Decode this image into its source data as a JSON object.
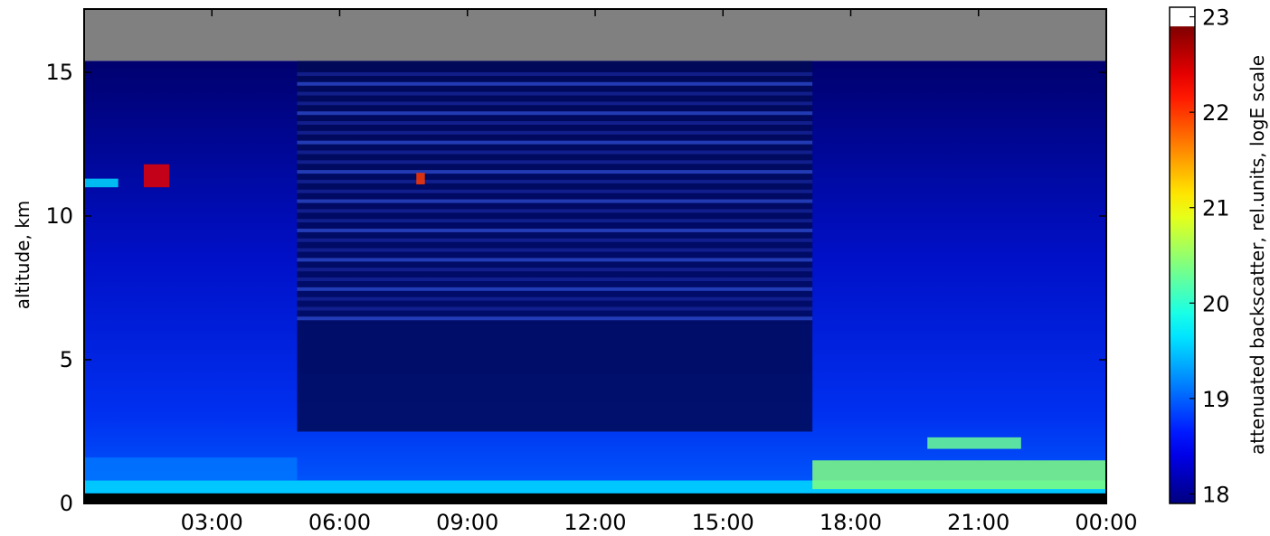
{
  "chart_data": {
    "type": "heatmap",
    "title": "",
    "xlabel": "",
    "ylabel": "altitude, km",
    "x_ticks": [
      "03:00",
      "06:00",
      "09:00",
      "12:00",
      "15:00",
      "18:00",
      "21:00",
      "00:00"
    ],
    "x_tick_hours": [
      3,
      6,
      9,
      12,
      15,
      18,
      21,
      24
    ],
    "xlim_hours": [
      0,
      24
    ],
    "y_ticks": [
      0,
      5,
      10,
      15
    ],
    "ylim": [
      0,
      17.2
    ],
    "colorbar": {
      "label": "attenuated backscatter, rel.units, logE scale",
      "ticks": [
        18,
        19,
        20,
        21,
        22,
        23
      ],
      "range": [
        17.9,
        23.1
      ],
      "colormap": "jet"
    },
    "colors": {
      "no_data": "#808080",
      "above_range": "#ffffff",
      "below_range": "#000000"
    },
    "regions": {
      "instrument_top_km": 15.4,
      "ground_blind_km": 0.35,
      "noisy_period_hours": [
        5.0,
        17.1
      ]
    },
    "cloud_layers": [
      {
        "t0": 0.0,
        "t1": 24.0,
        "z0": 0.35,
        "z1": 0.8,
        "value": 19.6
      },
      {
        "t0": 0.0,
        "t1": 5.0,
        "z0": 0.8,
        "z1": 1.6,
        "value": 19.1
      },
      {
        "t0": 17.1,
        "t1": 24.0,
        "z0": 0.5,
        "z1": 1.5,
        "value": 20.4
      },
      {
        "t0": 19.8,
        "t1": 22.0,
        "z0": 1.9,
        "z1": 2.3,
        "value": 20.3
      },
      {
        "t0": 1.4,
        "t1": 2.0,
        "z0": 11.0,
        "z1": 11.8,
        "value": 22.4
      },
      {
        "t0": 0.0,
        "t1": 0.8,
        "z0": 11.0,
        "z1": 11.3,
        "value": 19.6
      },
      {
        "t0": 7.8,
        "t1": 8.0,
        "z0": 11.1,
        "z1": 11.5,
        "value": 22.0
      }
    ]
  }
}
